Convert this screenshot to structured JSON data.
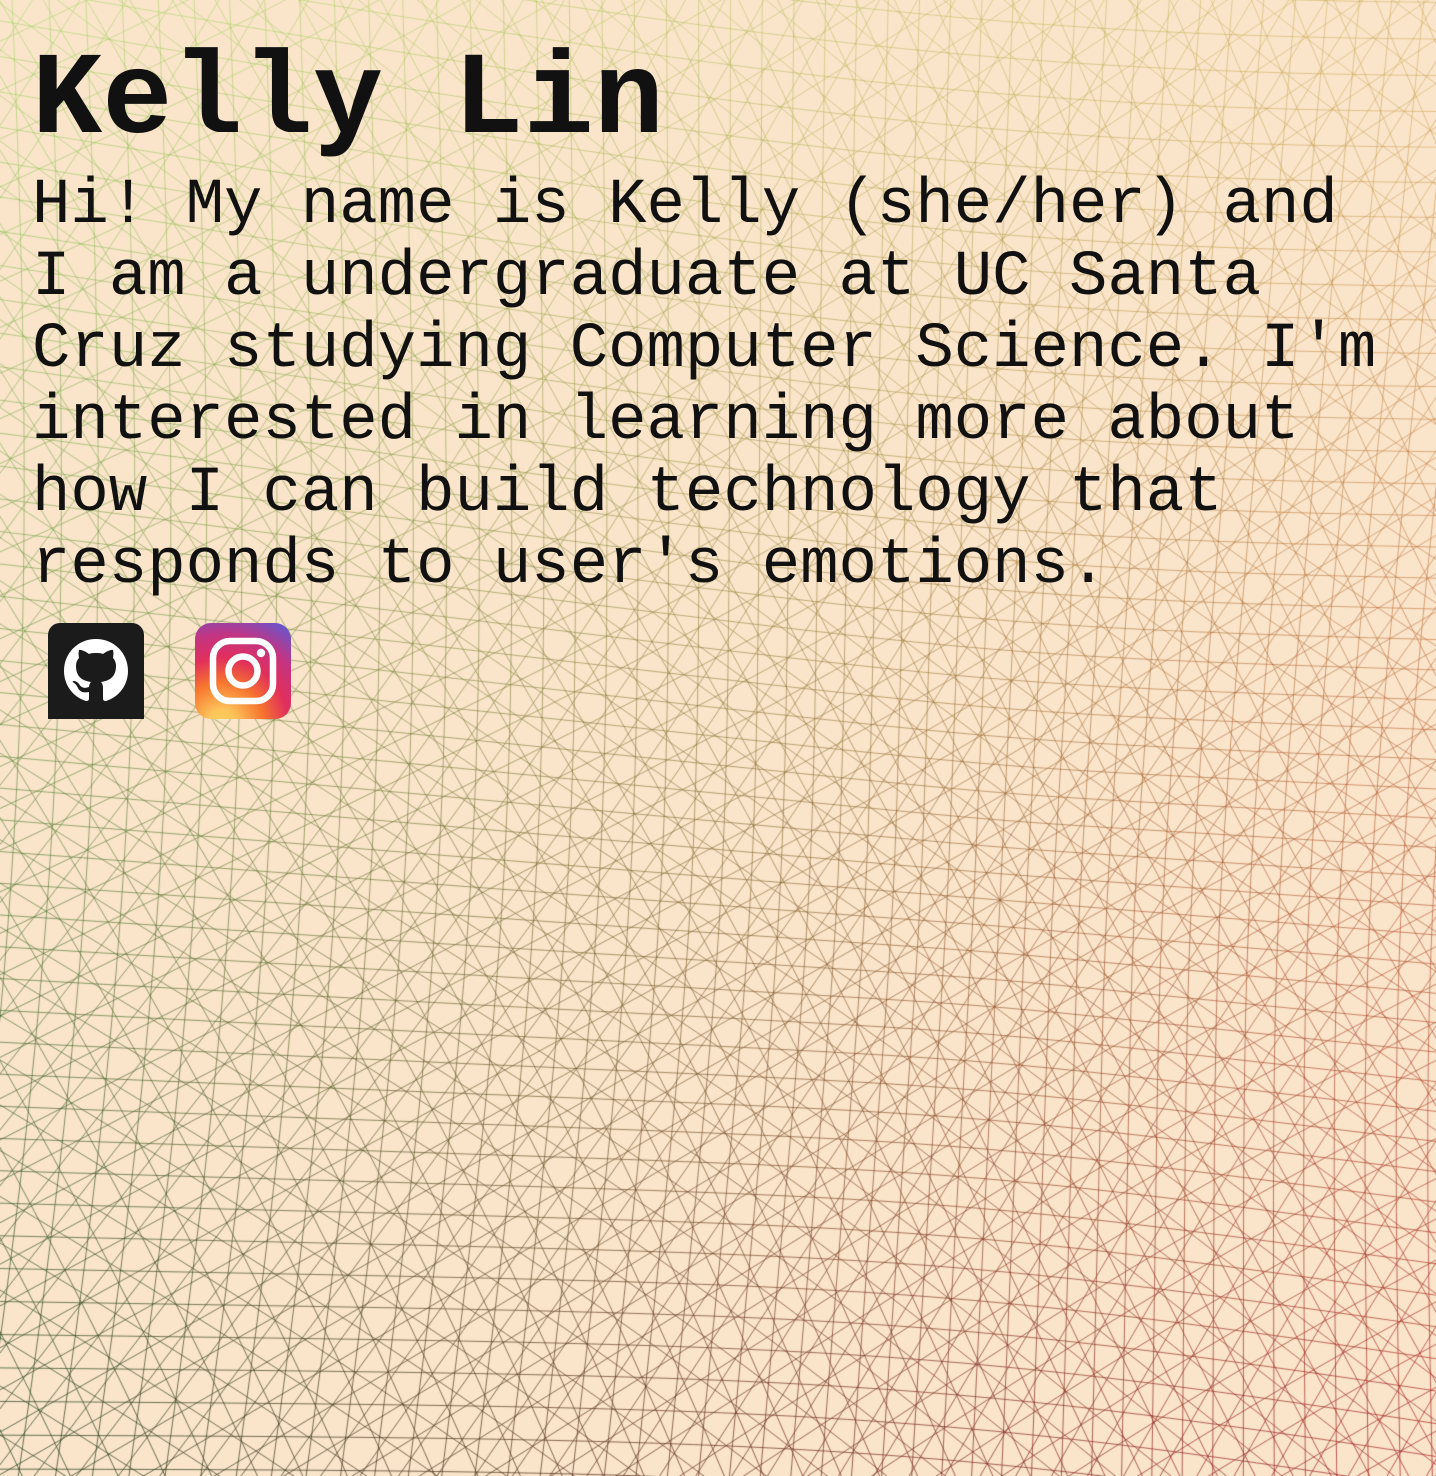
{
  "profile": {
    "name": "Kelly Lin",
    "bio": "Hi! My name is Kelly (she/her) and I am a undergraduate at UC Santa Cruz studying Computer Science. I'm interested in learning more about how I can build technology that responds to user's emotions."
  },
  "socials": [
    {
      "id": "github",
      "icon": "github-icon",
      "color": "#1b1b1b"
    },
    {
      "id": "instagram",
      "icon": "instagram-icon",
      "color": "#d62976"
    }
  ],
  "theme": {
    "background": "#fae5cb",
    "text": "#111111",
    "mesh_colors": [
      "#8ed64a",
      "#4a7a2a",
      "#1f3a1a",
      "#c88a2a",
      "#b84a2a",
      "#a82020"
    ]
  }
}
